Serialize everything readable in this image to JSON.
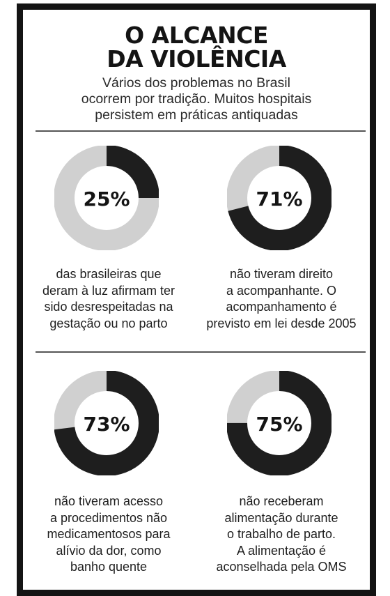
{
  "title": [
    "O ALCANCE",
    "DA VIOLÊNCIA"
  ],
  "subtitle": [
    "Vários dos problemas no Brasil",
    "ocorrem por tradição. Muitos hospitais",
    "persistem em práticas antiquadas"
  ],
  "colors": {
    "filled": "#1e1e1e",
    "remaining": "#d0d0d0",
    "frame": "#141414"
  },
  "chart_data": [
    {
      "type": "pie",
      "value": 25,
      "label": "25%",
      "caption": [
        "das brasileiras que",
        "deram à luz afirmam ter",
        "sido desrespeitadas na",
        "gestação ou no parto"
      ]
    },
    {
      "type": "pie",
      "value": 71,
      "label": "71%",
      "caption": [
        "não tiveram direito",
        "a acompanhante. O",
        "acompanhamento é",
        "previsto em lei desde 2005"
      ]
    },
    {
      "type": "pie",
      "value": 73,
      "label": "73%",
      "caption": [
        "não tiveram acesso",
        "a procedimentos não",
        "medicamentosos para",
        "alívio da dor, como",
        "banho quente"
      ]
    },
    {
      "type": "pie",
      "value": 75,
      "label": "75%",
      "caption": [
        "não receberam",
        "alimentação durante",
        "o trabalho de parto.",
        "A alimentação é",
        "aconselhada pela OMS"
      ]
    }
  ]
}
